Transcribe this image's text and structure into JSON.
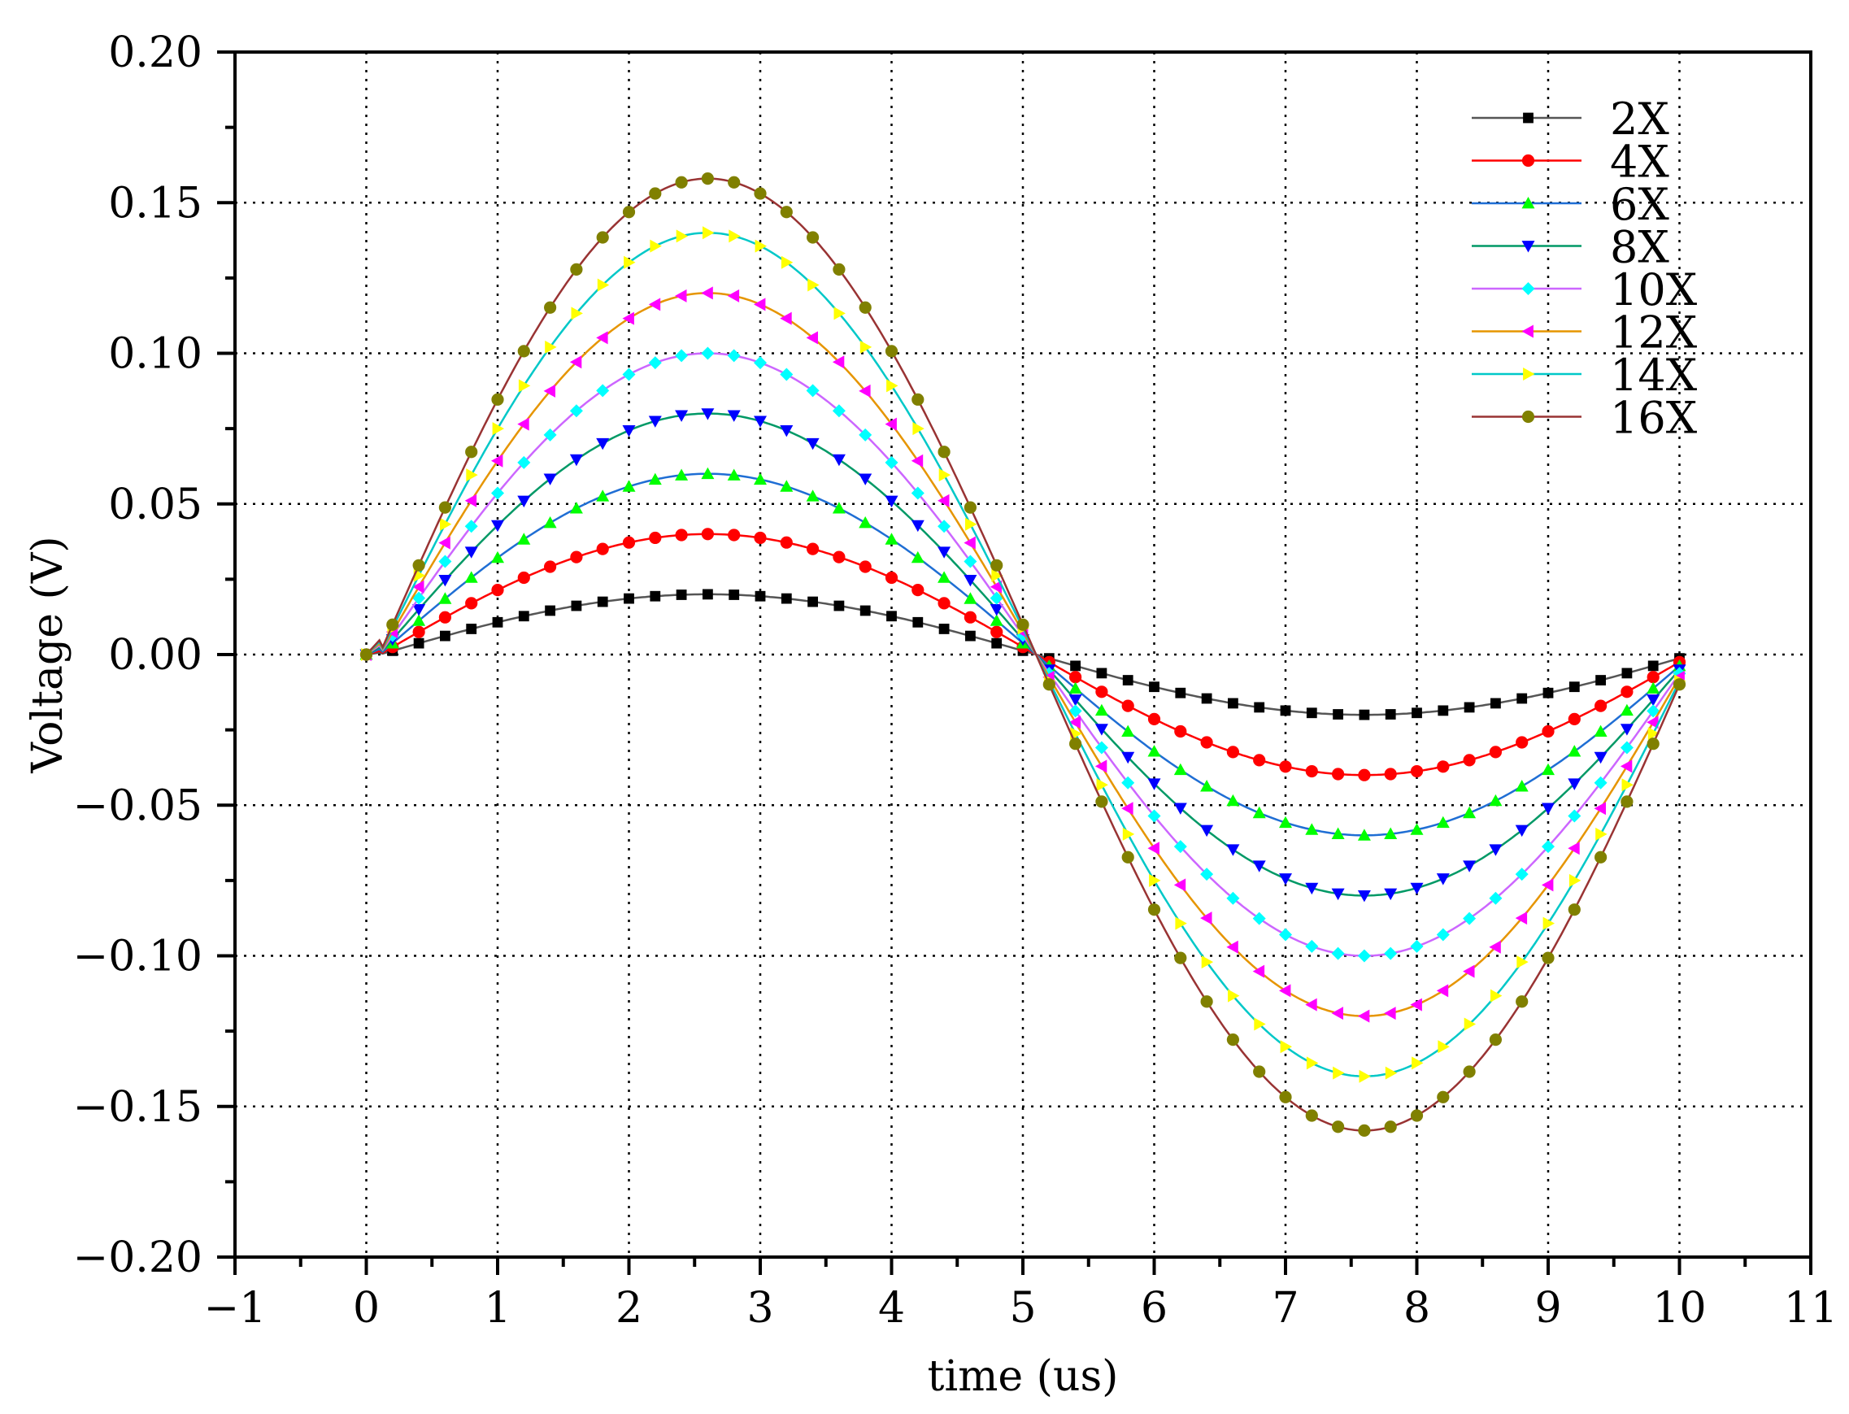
{
  "chart_data": {
    "type": "line",
    "title": "",
    "xlabel": "time (us)",
    "ylabel": "Voltage (V)",
    "xlim": [
      -1,
      11
    ],
    "ylim": [
      -0.2,
      0.2
    ],
    "x_ticks": [
      -1,
      0,
      1,
      2,
      3,
      4,
      5,
      6,
      7,
      8,
      9,
      10,
      11
    ],
    "x_tick_labels": [
      "−1",
      "0",
      "1",
      "2",
      "3",
      "4",
      "5",
      "6",
      "7",
      "8",
      "9",
      "10",
      "11"
    ],
    "y_ticks": [
      0.2,
      0.15,
      0.1,
      0.05,
      0.0,
      -0.05,
      -0.1,
      -0.15,
      -0.2
    ],
    "y_tick_labels": [
      "0.20",
      "0.15",
      "0.10",
      "0.05",
      "0.00",
      "−0.05",
      "−0.10",
      "−0.15",
      "−0.20"
    ],
    "grid": true,
    "grid_style": "dotted",
    "legend_position": "top-right",
    "waveform": {
      "shape": "sine",
      "period_us": 10,
      "phase_shift_us": 0.1,
      "sample_step_us": 0.2,
      "t_start_us": 0,
      "t_end_us": 10
    },
    "series": [
      {
        "name": "2X",
        "amplitude": 0.02,
        "color": "#333333",
        "marker": "square"
      },
      {
        "name": "4X",
        "amplitude": 0.04,
        "color": "#ff0000",
        "marker": "circle"
      },
      {
        "name": "6X",
        "amplitude": 0.06,
        "color": "#0055cc",
        "marker": "triangle-up"
      },
      {
        "name": "8X",
        "amplitude": 0.08,
        "color": "#00a060",
        "marker": "triangle-down"
      },
      {
        "name": "10X",
        "amplitude": 0.1,
        "color": "#ff00ff",
        "marker": "diamond"
      },
      {
        "name": "12X",
        "amplitude": 0.12,
        "color": "#ff00ff",
        "marker": "triangle-left"
      },
      {
        "name": "14X",
        "amplitude": 0.14,
        "color": "#00c8c8",
        "marker": "triangle-right"
      },
      {
        "name": "16X",
        "amplitude": 0.158,
        "color": "#8b4513",
        "marker": "hexagon"
      }
    ],
    "series_line_colors": [
      "#555555",
      "#ff0000",
      "#1f6ed4",
      "#009966",
      "#cc66ff",
      "#e69500",
      "#00c8c8",
      "#993333"
    ],
    "series_marker_colors": [
      "#000000",
      "#ff0000",
      "#00ff00",
      "#0000ff",
      "#00ffff",
      "#ff00ff",
      "#ffff00",
      "#808000"
    ]
  }
}
